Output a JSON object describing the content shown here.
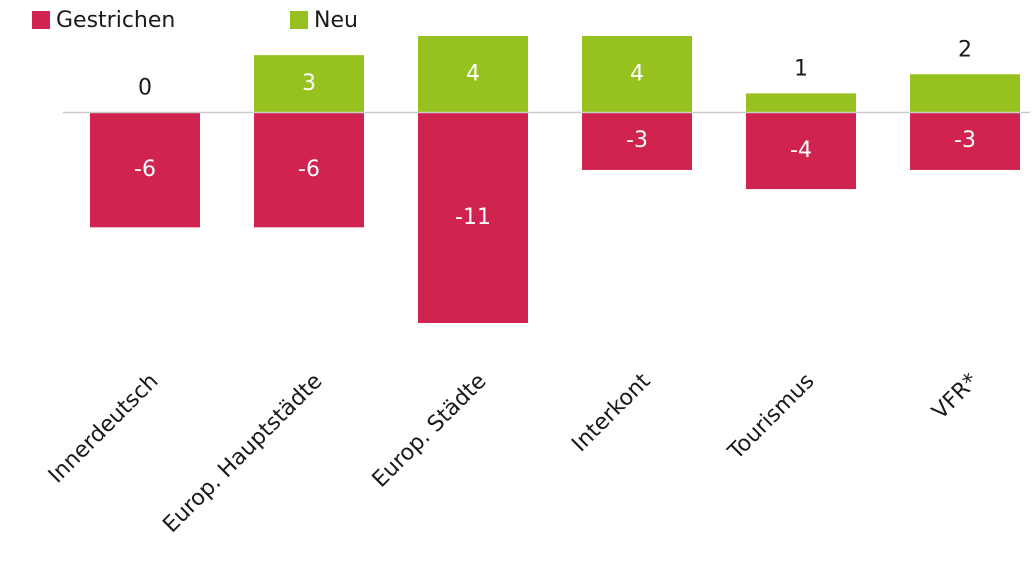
{
  "chart_data": {
    "type": "bar",
    "categories": [
      "Innerdeutsch",
      "Europ. Hauptstädte",
      "Europ. Städte",
      "Interkont",
      "Tourismus",
      "VFR*"
    ],
    "series": [
      {
        "name": "Gestrichen",
        "color": "#d0234f",
        "values": [
          -6,
          -6,
          -11,
          -3,
          -4,
          -3
        ]
      },
      {
        "name": "Neu",
        "color": "#97c11f",
        "values": [
          0,
          3,
          4,
          4,
          1,
          2
        ]
      }
    ],
    "legend": "top-left"
  }
}
